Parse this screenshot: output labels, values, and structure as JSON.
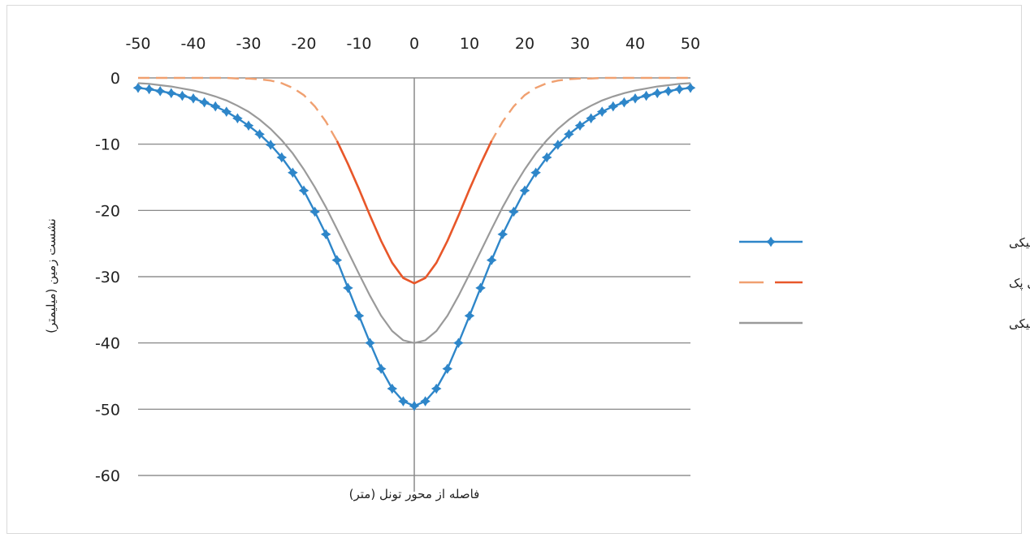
{
  "chart_data": {
    "type": "line",
    "title": "",
    "xlabel": "فاصله از محور تونل (متر)",
    "ylabel": "نشست زمین (میلیمتر)",
    "xlim": [
      -50,
      50
    ],
    "ylim": [
      -60,
      0
    ],
    "x_ticks": [
      "-50",
      "-40",
      "-30",
      "-20",
      "-10",
      "0",
      "10",
      "20",
      "30",
      "40",
      "50"
    ],
    "y_ticks": [
      "0",
      "-10",
      "-20",
      "-30",
      "-40",
      "-50",
      "-60"
    ],
    "x_axis_position": "top",
    "grid": "horizontal",
    "legend_position": "right",
    "x": [
      -50,
      -48,
      -46,
      -44,
      -42,
      -40,
      -38,
      -36,
      -34,
      -32,
      -30,
      -28,
      -26,
      -24,
      -22,
      -20,
      -18,
      -16,
      -14,
      -12,
      -10,
      -8,
      -6,
      -4,
      -2,
      0,
      2,
      4,
      6,
      8,
      10,
      12,
      14,
      16,
      18,
      20,
      22,
      24,
      26,
      28,
      30,
      32,
      34,
      36,
      38,
      40,
      42,
      44,
      46,
      48,
      50
    ],
    "series": [
      {
        "name": "روش عددی با بار ترافیکی",
        "color": "#2e86c9",
        "style": "solid-with-star-markers",
        "values": [
          -1.5,
          -1.7,
          -2.0,
          -2.3,
          -2.7,
          -3.1,
          -3.7,
          -4.3,
          -5.1,
          -6.1,
          -7.2,
          -8.5,
          -10.1,
          -12.0,
          -14.3,
          -17.0,
          -20.2,
          -23.6,
          -27.5,
          -31.7,
          -35.9,
          -40.0,
          -43.9,
          -46.9,
          -48.8,
          -49.5,
          -48.8,
          -46.9,
          -43.9,
          -40.0,
          -35.9,
          -31.7,
          -27.5,
          -23.6,
          -20.2,
          -17.0,
          -14.3,
          -12.0,
          -10.1,
          -8.5,
          -7.2,
          -6.1,
          -5.1,
          -4.3,
          -3.7,
          -3.1,
          -2.7,
          -2.3,
          -2.0,
          -1.7,
          -1.5
        ]
      },
      {
        "name": "روش تحلیلی پک",
        "color": "#e8572a",
        "style": "dashed-solid",
        "values": [
          0,
          0,
          0,
          0,
          0,
          0,
          0,
          0,
          0,
          -0.1,
          -0.1,
          -0.2,
          -0.4,
          -0.8,
          -1.5,
          -2.6,
          -4.3,
          -6.6,
          -9.5,
          -13.0,
          -16.8,
          -20.8,
          -24.6,
          -27.9,
          -30.2,
          -31.0,
          -30.2,
          -27.9,
          -24.6,
          -20.8,
          -16.8,
          -13.0,
          -9.5,
          -6.6,
          -4.3,
          -2.6,
          -1.5,
          -0.8,
          -0.4,
          -0.2,
          -0.1,
          -0.1,
          0,
          0,
          0,
          0,
          0,
          0,
          0,
          0,
          0
        ]
      },
      {
        "name": "روش عددی بدون بار ترافیکی",
        "color": "#9a9a9a",
        "style": "solid",
        "values": [
          -0.8,
          -0.9,
          -1.1,
          -1.3,
          -1.6,
          -1.9,
          -2.3,
          -2.8,
          -3.4,
          -4.2,
          -5.1,
          -6.3,
          -7.7,
          -9.4,
          -11.4,
          -13.8,
          -16.5,
          -19.5,
          -22.8,
          -26.2,
          -29.6,
          -32.9,
          -35.9,
          -38.2,
          -39.6,
          -40.0,
          -39.6,
          -38.2,
          -35.9,
          -32.9,
          -29.6,
          -26.2,
          -22.8,
          -19.5,
          -16.5,
          -13.8,
          -11.4,
          -9.4,
          -7.7,
          -6.3,
          -5.1,
          -4.2,
          -3.4,
          -2.8,
          -2.3,
          -1.9,
          -1.6,
          -1.3,
          -1.1,
          -0.9,
          -0.8
        ]
      }
    ]
  }
}
